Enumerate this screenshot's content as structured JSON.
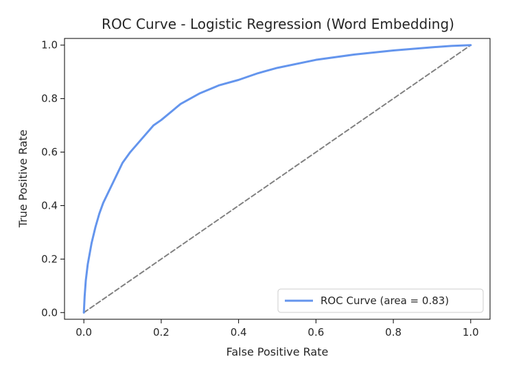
{
  "chart_data": {
    "type": "line",
    "title": "ROC Curve - Logistic Regression (Word Embedding)",
    "xlabel": "False Positive Rate",
    "ylabel": "True Positive Rate",
    "xlim": [
      -0.05,
      1.05
    ],
    "ylim": [
      -0.025,
      1.025
    ],
    "x_ticks": [
      0.0,
      0.2,
      0.4,
      0.6,
      0.8,
      1.0
    ],
    "x_tick_labels": [
      "0.0",
      "0.2",
      "0.4",
      "0.6",
      "0.8",
      "1.0"
    ],
    "y_ticks": [
      0.0,
      0.2,
      0.4,
      0.6,
      0.8,
      1.0
    ],
    "y_tick_labels": [
      "0.0",
      "0.2",
      "0.4",
      "0.6",
      "0.8",
      "1.0"
    ],
    "grid": false,
    "legend_position": "lower-right",
    "series": [
      {
        "name": "ROC Curve (area = 0.83)",
        "color": "#6495ED",
        "style": "solid",
        "x": [
          0.0,
          0.002,
          0.005,
          0.01,
          0.02,
          0.03,
          0.04,
          0.05,
          0.06,
          0.08,
          0.1,
          0.12,
          0.15,
          0.18,
          0.2,
          0.25,
          0.3,
          0.35,
          0.4,
          0.45,
          0.5,
          0.6,
          0.7,
          0.8,
          0.9,
          0.95,
          1.0
        ],
        "y": [
          0.0,
          0.06,
          0.12,
          0.18,
          0.26,
          0.32,
          0.37,
          0.41,
          0.44,
          0.5,
          0.56,
          0.6,
          0.65,
          0.7,
          0.72,
          0.78,
          0.82,
          0.85,
          0.87,
          0.895,
          0.915,
          0.945,
          0.965,
          0.98,
          0.992,
          0.997,
          1.0
        ]
      },
      {
        "name": "",
        "color": "#808080",
        "style": "dashed",
        "x": [
          0.0,
          1.0
        ],
        "y": [
          0.0,
          1.0
        ]
      }
    ]
  }
}
